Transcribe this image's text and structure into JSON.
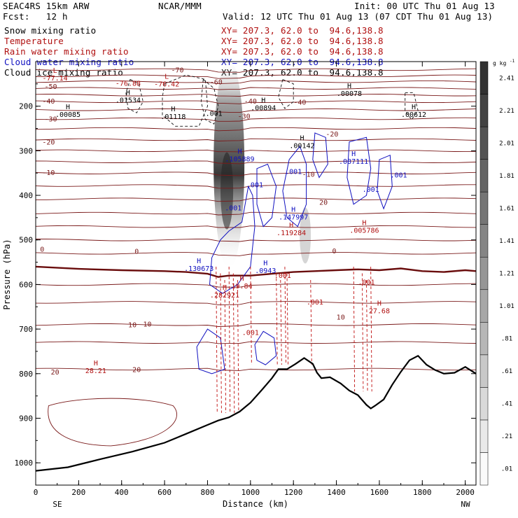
{
  "header": {
    "model": "SEAC4RS 15km ARW",
    "org": "NCAR/MMM",
    "init": "Init: 00 UTC Thu 01 Aug 13",
    "fcst": "Fcst:   12 h",
    "valid": "Valid: 12 UTC Thu 01 Aug 13 (07 CDT Thu 01 Aug 13)"
  },
  "fields": [
    {
      "name": "Snow mixing ratio",
      "xy": "",
      "color": "#000000"
    },
    {
      "name": "Temperature",
      "xy": "XY= 207.3, 62.0 to  94.6,138.8",
      "color": "#b01010"
    },
    {
      "name": "Rain water mixing ratio",
      "xy": "XY= 207.3, 62.0 to  94.6,138.8",
      "color": "#b01010"
    },
    {
      "name": "Cloud water mixing ratio",
      "xy": "XY= 207.3, 62.0 to  94.6,138.8",
      "color": "#1010c0"
    },
    {
      "name": "Cloud ice mixing ratio",
      "xy": "XY= 207.3, 62.0 to  94.6,138.8",
      "color": "#000000"
    }
  ],
  "chart_data": {
    "type": "cross-section",
    "xlabel": "Distance (km)",
    "ylabel": "Pressure (hPa)",
    "xlim": [
      0,
      2050
    ],
    "ylim": [
      1050,
      100
    ],
    "x_ticks": [
      "0",
      "200",
      "400",
      "600",
      "800",
      "1000",
      "1200",
      "1400",
      "1600",
      "1800",
      "2000"
    ],
    "y_ticks": [
      "200",
      "300",
      "400",
      "500",
      "600",
      "700",
      "800",
      "900",
      "1000"
    ],
    "x_end_labels": {
      "left": "SE",
      "right": "NW"
    },
    "colorbar": {
      "unit": "g kg",
      "unit_exp": "-1",
      "labels": [
        "2.41",
        "2.21",
        "2.01",
        "1.81",
        "1.61",
        "1.41",
        "1.21",
        "1.01",
        ".81",
        ".61",
        ".41",
        ".21",
        ".01"
      ],
      "bin_edges": [
        0.01,
        0.21,
        0.41,
        0.61,
        0.81,
        1.01,
        1.21,
        1.41,
        1.61,
        1.81,
        2.01,
        2.21,
        2.41,
        2.61
      ]
    },
    "temperature_contours_c": [
      {
        "value": -70,
        "label": "-70",
        "x": 660,
        "p": 118
      },
      {
        "value": -60,
        "label": "-60",
        "x": 840,
        "p": 145
      },
      {
        "value": -50,
        "label": "-50",
        "x": 70,
        "p": 155
      },
      {
        "value": -40,
        "label": "-40",
        "x": 60,
        "p": 188
      },
      {
        "value": -40,
        "label": "-40",
        "x": 1000,
        "p": 188
      },
      {
        "value": -40,
        "label": "-40",
        "x": 1230,
        "p": 190
      },
      {
        "value": -30,
        "label": "-30",
        "x": 70,
        "p": 228
      },
      {
        "value": -30,
        "label": "-30",
        "x": 970,
        "p": 222
      },
      {
        "value": -20,
        "label": "-20",
        "x": 60,
        "p": 280
      },
      {
        "value": -20,
        "label": "-20",
        "x": 1380,
        "p": 262
      },
      {
        "value": -10,
        "label": "-10",
        "x": 60,
        "p": 348
      },
      {
        "value": -10,
        "label": "-10",
        "x": 1270,
        "p": 352
      },
      {
        "value": 0,
        "label": "0",
        "x": 30,
        "p": 520
      },
      {
        "value": 0,
        "label": "0",
        "x": 470,
        "p": 525
      },
      {
        "value": 0,
        "label": "0",
        "x": 1390,
        "p": 524
      },
      {
        "value": 10,
        "label": "10",
        "x": 450,
        "p": 690
      },
      {
        "value": 10,
        "label": "10",
        "x": 520,
        "p": 688
      },
      {
        "value": 10,
        "label": "10",
        "x": 1420,
        "p": 672
      },
      {
        "value": 20,
        "label": "20",
        "x": 90,
        "p": 796
      },
      {
        "value": 20,
        "label": "20",
        "x": 470,
        "p": 790
      },
      {
        "value": 20,
        "label": "20",
        "x": 1340,
        "p": 415
      }
    ],
    "extrema": [
      {
        "label": "H",
        "value": ".01534",
        "x": 430,
        "p": 178,
        "color": "#000000"
      },
      {
        "label": "H",
        "value": ".00085",
        "x": 150,
        "p": 210,
        "color": "#000000"
      },
      {
        "label": "H",
        "value": ".01118",
        "x": 640,
        "p": 215,
        "color": "#000000"
      },
      {
        "label": "H",
        "value": ".00894",
        "x": 1060,
        "p": 195,
        "color": "#000000"
      },
      {
        "label": "H",
        "value": ".00078",
        "x": 1460,
        "p": 163,
        "color": "#000000"
      },
      {
        "label": "H",
        "value": ".00612",
        "x": 1760,
        "p": 210,
        "color": "#000000"
      },
      {
        "label": "H",
        "value": ".00142",
        "x": 1240,
        "p": 280,
        "color": "#000000"
      },
      {
        "label": "L",
        "value": "-77.14",
        "x": 90,
        "p": 128,
        "color": "#b01010"
      },
      {
        "label": "",
        "value": "-76.88",
        "x": 430,
        "p": 140,
        "color": "#b01010"
      },
      {
        "label": "L",
        "value": "-76.42",
        "x": 610,
        "p": 142,
        "color": "#b01010"
      },
      {
        "label": "H",
        "value": ".105889",
        "x": 950,
        "p": 310,
        "color": "#1010c0"
      },
      {
        "label": "H",
        "value": ".087111",
        "x": 1480,
        "p": 315,
        "color": "#1010c0"
      },
      {
        "label": "H",
        "value": ".147997",
        "x": 1200,
        "p": 440,
        "color": "#1010c0"
      },
      {
        "label": "H",
        "value": ".130673",
        "x": 760,
        "p": 555,
        "color": "#1010c0"
      },
      {
        "label": "H",
        "value": ".0943",
        "x": 1070,
        "p": 560,
        "color": "#1010c0"
      },
      {
        "label": "H",
        "value": ".119284",
        "x": 1190,
        "p": 475,
        "color": "#b01010"
      },
      {
        "label": "H",
        "value": ".005786",
        "x": 1530,
        "p": 470,
        "color": "#b01010"
      },
      {
        "label": "H",
        "value": ".282921",
        "x": 880,
        "p": 615,
        "color": "#b01010"
      },
      {
        "label": "H",
        "value": "19.84",
        "x": 960,
        "p": 595,
        "color": "#b01010"
      },
      {
        "label": "H",
        "value": "27.68",
        "x": 1600,
        "p": 650,
        "color": "#b01010"
      },
      {
        "label": "H",
        "value": "28.21",
        "x": 280,
        "p": 785,
        "color": "#b01010"
      }
    ],
    "small_labels": [
      {
        "text": ".001",
        "x": 830,
        "p": 222,
        "color": "#000000"
      },
      {
        "text": ".001",
        "x": 1200,
        "p": 352,
        "color": "#1010c0"
      },
      {
        "text": ".001",
        "x": 1690,
        "p": 360,
        "color": "#1010c0"
      },
      {
        "text": ".001",
        "x": 1020,
        "p": 382,
        "color": "#1010c0"
      },
      {
        "text": ".001",
        "x": 1560,
        "p": 392,
        "color": "#1010c0"
      },
      {
        "text": ".001",
        "x": 920,
        "p": 434,
        "color": "#1010c0"
      },
      {
        "text": ".001",
        "x": 1150,
        "p": 585,
        "color": "#b01010"
      },
      {
        "text": ".001",
        "x": 1540,
        "p": 600,
        "color": "#b01010"
      },
      {
        "text": ".001",
        "x": 1300,
        "p": 645,
        "color": "#b01010"
      },
      {
        "text": ".001",
        "x": 1000,
        "p": 713,
        "color": "#b01010"
      }
    ],
    "terrain_hpa": [
      [
        0,
        1018
      ],
      [
        150,
        1010
      ],
      [
        300,
        992
      ],
      [
        450,
        975
      ],
      [
        600,
        955
      ],
      [
        700,
        935
      ],
      [
        800,
        915
      ],
      [
        850,
        905
      ],
      [
        900,
        898
      ],
      [
        950,
        885
      ],
      [
        1000,
        865
      ],
      [
        1050,
        838
      ],
      [
        1100,
        810
      ],
      [
        1130,
        790
      ],
      [
        1170,
        790
      ],
      [
        1210,
        778
      ],
      [
        1250,
        765
      ],
      [
        1290,
        778
      ],
      [
        1310,
        798
      ],
      [
        1330,
        810
      ],
      [
        1370,
        808
      ],
      [
        1420,
        822
      ],
      [
        1460,
        838
      ],
      [
        1500,
        848
      ],
      [
        1540,
        870
      ],
      [
        1560,
        878
      ],
      [
        1580,
        872
      ],
      [
        1620,
        858
      ],
      [
        1660,
        825
      ],
      [
        1700,
        796
      ],
      [
        1740,
        770
      ],
      [
        1780,
        760
      ],
      [
        1820,
        780
      ],
      [
        1860,
        792
      ],
      [
        1900,
        800
      ],
      [
        1950,
        798
      ],
      [
        2000,
        785
      ],
      [
        2050,
        800
      ]
    ],
    "zero_isotherm_hpa": [
      [
        0,
        560
      ],
      [
        200,
        565
      ],
      [
        400,
        568
      ],
      [
        600,
        570
      ],
      [
        700,
        572
      ],
      [
        800,
        576
      ],
      [
        850,
        583
      ],
      [
        900,
        580
      ],
      [
        1000,
        580
      ],
      [
        1100,
        576
      ],
      [
        1200,
        572
      ],
      [
        1300,
        570
      ],
      [
        1400,
        568
      ],
      [
        1500,
        566
      ],
      [
        1600,
        568
      ],
      [
        1700,
        564
      ],
      [
        1800,
        570
      ],
      [
        1900,
        572
      ],
      [
        2000,
        568
      ],
      [
        2050,
        570
      ]
    ]
  }
}
